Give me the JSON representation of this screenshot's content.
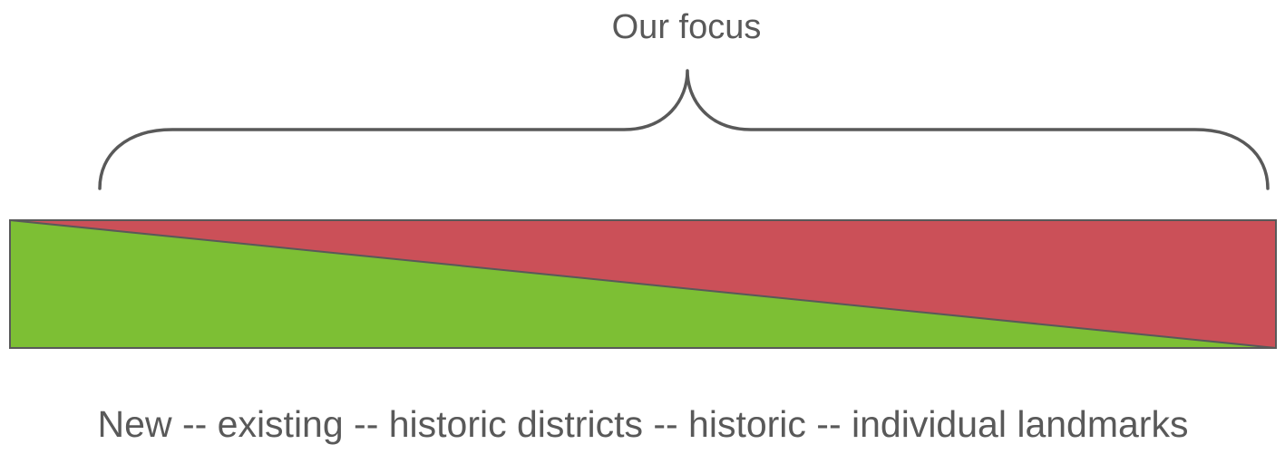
{
  "focus_label": "Our focus",
  "spectrum_label": "New -- existing -- historic districts -- historic -- individual landmarks",
  "colors": {
    "green": "#7dbf34",
    "red": "#cb5058",
    "outline": "#595959",
    "brace": "#595959",
    "text": "#595959"
  }
}
